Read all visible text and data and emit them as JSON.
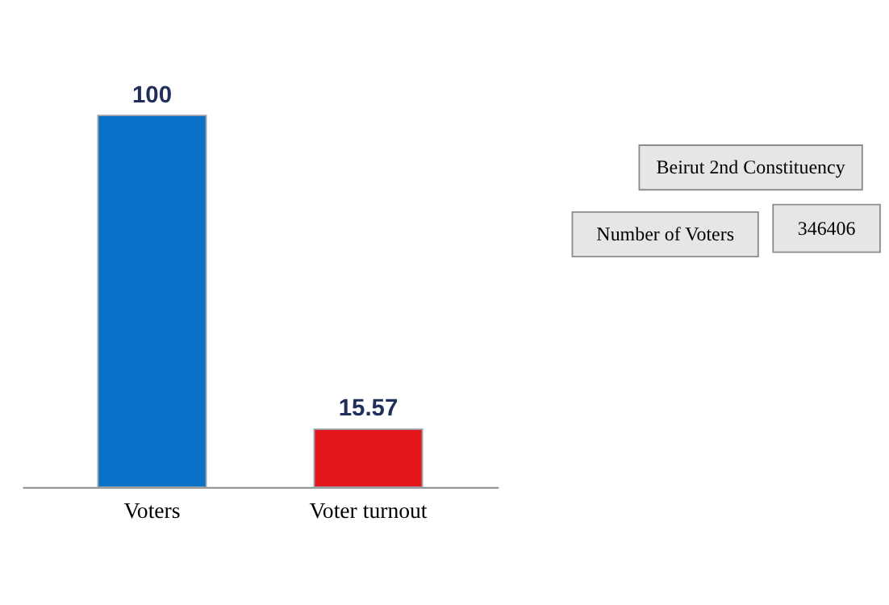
{
  "chart_data": {
    "type": "bar",
    "categories": [
      "Voters",
      "Voter turnout"
    ],
    "values": [
      100,
      15.57
    ],
    "colors": [
      "#0a72c8",
      "#e3161c"
    ],
    "data_labels": true,
    "grid": false,
    "tick_labels": "x",
    "annotations": [
      "Beirut  2nd Constituency",
      "Number of Voters",
      "346406"
    ]
  }
}
